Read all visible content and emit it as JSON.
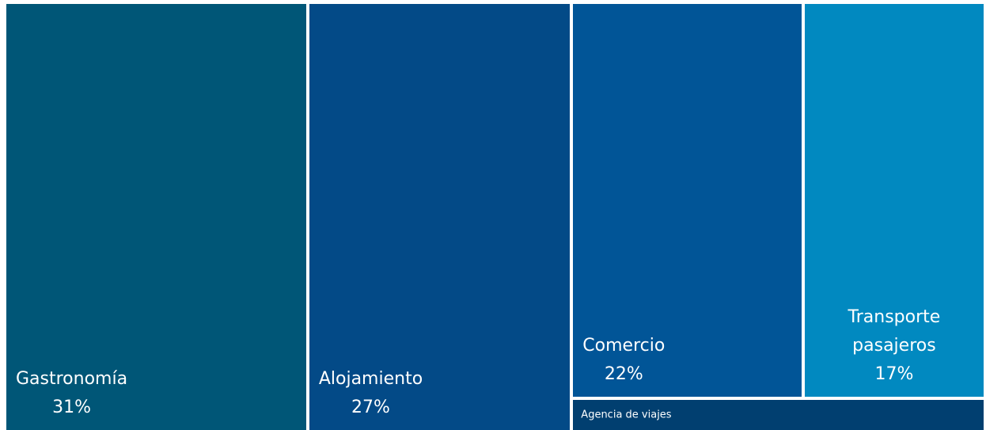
{
  "chart_data": {
    "type": "treemap",
    "categories": [
      "Gastronomía",
      "Alojamiento",
      "Comercio",
      "Transporte pasajeros",
      "Agencia de viajes"
    ],
    "values": [
      31,
      27,
      22,
      17,
      3
    ],
    "value_labels": [
      "31%",
      "27%",
      "22%",
      "17%",
      null
    ],
    "colors": [
      "#005677",
      "#034a87",
      "#015597",
      "#0189c0",
      "#013f70"
    ]
  }
}
